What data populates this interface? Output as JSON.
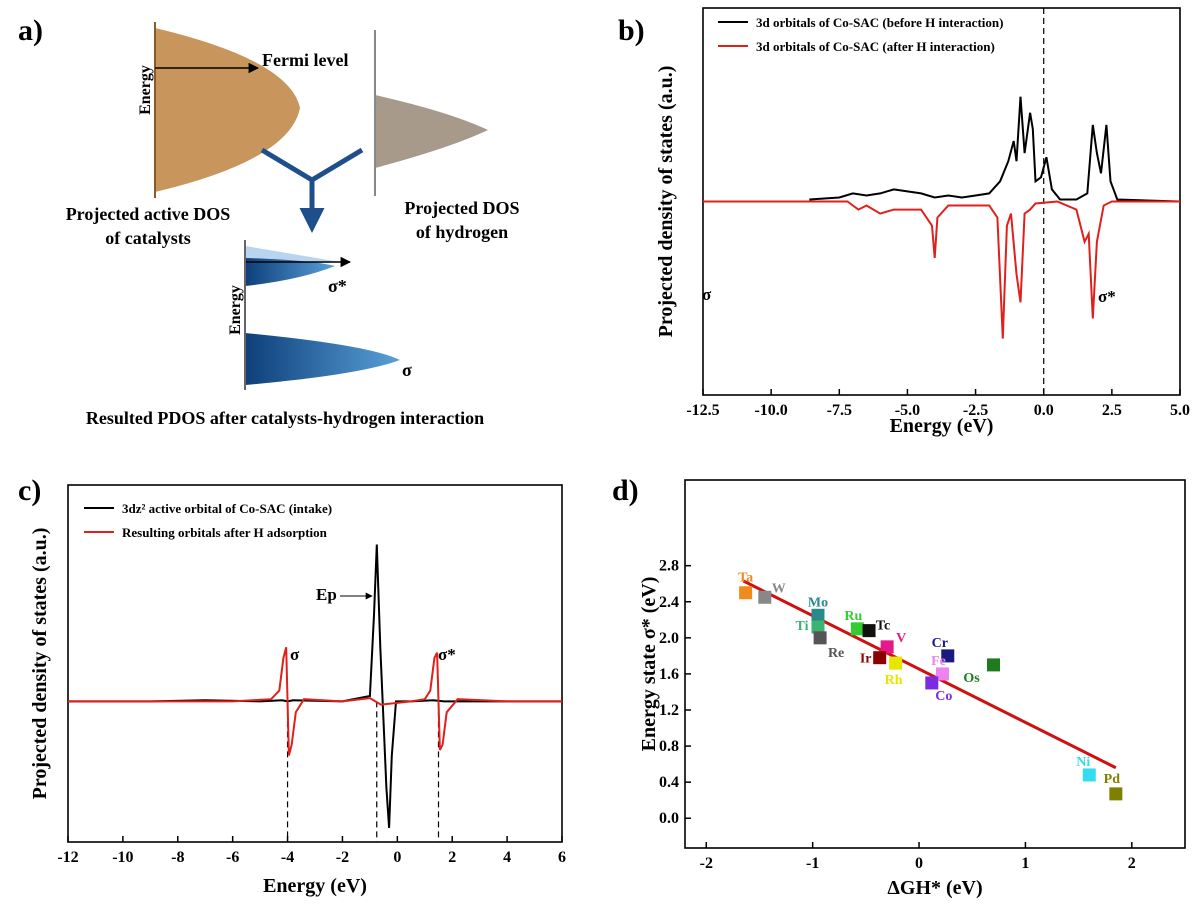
{
  "diagram": {
    "panel_label": "a)",
    "energy_label_top": "Energy",
    "fermi_label": "Fermi level",
    "catalyst_label": [
      "Projected active DOS",
      "of catalysts"
    ],
    "hydrogen_label": [
      "Projected DOS",
      "of hydrogen"
    ],
    "energy_label_bottom": "Energy",
    "sigma_star": "σ*",
    "sigma": "σ",
    "caption": "Resulted PDOS after catalysts-hydrogen interaction"
  },
  "chart_data": [
    {
      "type": "line",
      "panel_label": "b)",
      "xlabel": "Energy (eV)",
      "ylabel": "Projected density of states (a.u.)",
      "xlim": [
        -12.5,
        5
      ],
      "ylim": [
        -4.8,
        4.8
      ],
      "xticks": [
        -12.5,
        {
          "value": -10,
          "label": "-10.0"
        },
        -7.5,
        {
          "value": -5,
          "label": "-5.0"
        },
        -2.5,
        {
          "value": 0,
          "label": "0.0"
        },
        2.5,
        {
          "value": 5,
          "label": "5.0"
        }
      ],
      "vlines": [
        0
      ],
      "annotations": [
        "σ",
        "σ*"
      ],
      "series": [
        {
          "name": "3d orbitals of Co-SAC (before H interaction)",
          "color": "#000000",
          "x": [
            -8.6,
            -7.5,
            -7,
            -6.5,
            -6,
            -5.5,
            -5,
            -4.5,
            -4,
            -3.5,
            -3,
            -2.5,
            -2,
            -1.6,
            -1.3,
            -1.1,
            -1.0,
            -0.85,
            -0.7,
            -0.5,
            -0.4,
            -0.3,
            -0.1,
            0.1,
            0.3,
            0.6,
            1.2,
            1.6,
            1.8,
            1.95,
            2.1,
            2.3,
            2.45,
            2.7,
            5
          ],
          "values": [
            0.05,
            0.1,
            0.2,
            0.15,
            0.2,
            0.3,
            0.25,
            0.2,
            0.1,
            0.15,
            0.1,
            0.15,
            0.2,
            0.5,
            1.0,
            1.5,
            1.0,
            2.6,
            1.2,
            2.2,
            1.8,
            0.5,
            0.6,
            1.1,
            0.3,
            0.05,
            0.05,
            0.2,
            1.9,
            1.2,
            0.7,
            1.9,
            0.5,
            0.05,
            0
          ]
        },
        {
          "name": "3d orbitals of Co-SAC (after H interaction)",
          "color": "#e0201b",
          "x": [
            -12.5,
            -7.2,
            -7,
            -6.8,
            -6.5,
            -6,
            -5.5,
            -5,
            -4.5,
            -4.1,
            -4.0,
            -3.9,
            -3.5,
            -2.5,
            -2,
            -1.7,
            -1.5,
            -1.35,
            -1.2,
            -1.0,
            -0.85,
            -0.7,
            -0.5,
            -0.3,
            0.5,
            1.2,
            1.5,
            1.65,
            1.8,
            1.95,
            2.2,
            2.5,
            5
          ],
          "values": [
            0,
            0,
            -0.1,
            -0.2,
            -0.1,
            -0.3,
            -0.2,
            -0.2,
            -0.2,
            -0.6,
            -1.4,
            -0.4,
            -0.1,
            -0.1,
            -0.1,
            -0.4,
            -3.4,
            -0.6,
            -0.3,
            -1.8,
            -2.5,
            -0.3,
            -0.2,
            -0.05,
            0,
            -0.2,
            -1.0,
            -0.8,
            -2.9,
            -1.0,
            -0.1,
            0,
            0
          ]
        }
      ]
    },
    {
      "type": "line",
      "panel_label": "c)",
      "xlabel": "Energy (eV)",
      "ylabel": "Projected density of states (a.u.)",
      "xlim": [
        -12,
        6
      ],
      "ylim": [
        -1.3,
        2.0
      ],
      "xticks": [
        -12,
        -10,
        -8,
        -6,
        -4,
        -2,
        0,
        2,
        4,
        6
      ],
      "vlines": [
        -4,
        -0.75,
        1.5
      ],
      "annotations": [
        "σ",
        "σ*",
        "Ep"
      ],
      "series": [
        {
          "name": "3dz² active orbital of Co-SAC (intake)",
          "color": "#000000",
          "x": [
            -12,
            -9,
            -7,
            -5,
            -4.2,
            -4.0,
            -3.8,
            -2,
            -1.0,
            -0.85,
            -0.75,
            -0.62,
            -0.5,
            -0.4,
            -0.3,
            -0.2,
            -0.05,
            0.5,
            1.3,
            1.7,
            3,
            6
          ],
          "values": [
            0,
            0,
            0.01,
            0,
            0.01,
            0,
            0.01,
            0,
            0.05,
            0.8,
            1.45,
            0.5,
            -0.2,
            -0.8,
            -1.17,
            -0.5,
            0,
            0,
            0.01,
            0,
            0,
            0
          ]
        },
        {
          "name": "Resulting orbitals after H adsorption",
          "color": "#e0201b",
          "x": [
            -12,
            -6,
            -4.6,
            -4.3,
            -4.15,
            -4.05,
            -3.95,
            -3.85,
            -3.7,
            -3.4,
            -2,
            -1,
            -0.6,
            0.5,
            1.0,
            1.2,
            1.35,
            1.45,
            1.55,
            1.65,
            1.8,
            2.2,
            4,
            6
          ],
          "values": [
            0,
            0,
            0.02,
            0.1,
            0.4,
            0.5,
            -0.5,
            -0.4,
            -0.1,
            0.02,
            0,
            0.03,
            -0.03,
            0,
            0.02,
            0.1,
            0.4,
            0.45,
            -0.45,
            -0.4,
            -0.1,
            0.02,
            0,
            0
          ]
        }
      ]
    },
    {
      "type": "scatter",
      "panel_label": "d)",
      "xlabel": "ΔGH* (eV)",
      "ylabel": "Energy state σ* (eV)",
      "xlim": [
        -2.2,
        2.5
      ],
      "ylim": [
        -0.33,
        3.75
      ],
      "xticks": [
        -2,
        -1,
        0,
        1,
        2
      ],
      "yticks": [
        {
          "value": 0,
          "label": "0.0"
        },
        0.4,
        0.8,
        1.2,
        1.6,
        {
          "value": 2,
          "label": "2.0"
        },
        2.4,
        2.8
      ],
      "labels": [
        "Ta",
        "W",
        "Mo",
        "Ti",
        "Re",
        "Ru",
        "Tc",
        "V",
        "Ir",
        "Rh",
        "Cr",
        "Fe",
        "Co",
        "Os",
        "Ni",
        "Pd"
      ],
      "x": [
        -1.63,
        -1.45,
        -0.95,
        -0.95,
        -0.93,
        -0.58,
        -0.47,
        -0.3,
        -0.37,
        -0.22,
        0.27,
        0.22,
        0.12,
        0.7,
        1.6,
        1.85
      ],
      "values": [
        2.5,
        2.45,
        2.25,
        2.12,
        2.0,
        2.1,
        2.08,
        1.9,
        1.78,
        1.72,
        1.8,
        1.6,
        1.5,
        1.7,
        0.48,
        0.27
      ],
      "colors": [
        "#f08a1c",
        "#888888",
        "#2a8a8a",
        "#3cb371",
        "#555555",
        "#33cc33",
        "#111111",
        "#e6198a",
        "#8b0000",
        "#e6e600",
        "#1a1a80",
        "#ee82ee",
        "#7b2be2",
        "#1e7b1e",
        "#33ddee",
        "#808000"
      ],
      "fit": {
        "x": [
          -1.65,
          1.85
        ],
        "values": [
          2.63,
          0.56
        ],
        "color": "#d01010"
      }
    }
  ]
}
